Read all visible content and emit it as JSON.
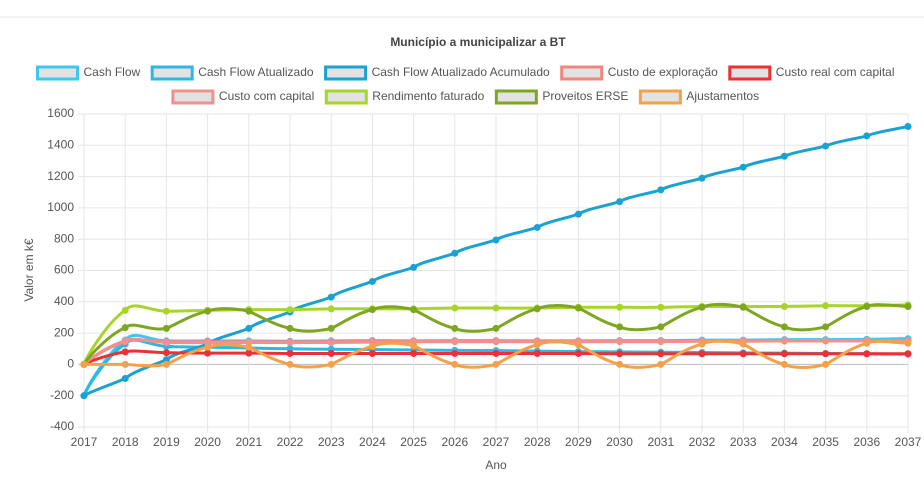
{
  "chart_data": {
    "type": "line",
    "title": "Município a municipalizar a BT",
    "xlabel": "Ano",
    "ylabel": "Valor em k€",
    "x": [
      2017,
      2018,
      2019,
      2020,
      2021,
      2022,
      2023,
      2024,
      2025,
      2026,
      2027,
      2028,
      2029,
      2030,
      2031,
      2032,
      2033,
      2034,
      2035,
      2036,
      2037
    ],
    "xlim": [
      2017,
      2037
    ],
    "xticks": [
      2017,
      2018,
      2019,
      2020,
      2021,
      2022,
      2023,
      2024,
      2025,
      2026,
      2027,
      2028,
      2029,
      2030,
      2031,
      2032,
      2033,
      2034,
      2035,
      2036,
      2037
    ],
    "ylim": [
      -400,
      1600
    ],
    "yticks": [
      -400,
      -200,
      0,
      200,
      400,
      600,
      800,
      1000,
      1200,
      1400,
      1600
    ],
    "grid": true,
    "legend": "top",
    "series": [
      {
        "name": "Cash Flow",
        "color": "#3ec8ee",
        "values": [
          -200,
          155,
          150,
          150,
          150,
          148,
          150,
          152,
          150,
          152,
          152,
          150,
          150,
          152,
          152,
          155,
          155,
          158,
          158,
          160,
          165
        ]
      },
      {
        "name": "Cash Flow Atualizado",
        "color": "#2bb8e6",
        "values": [
          -200,
          130,
          115,
          110,
          105,
          100,
          97,
          95,
          92,
          90,
          88,
          85,
          82,
          80,
          78,
          76,
          74,
          72,
          70,
          68,
          66
        ]
      },
      {
        "name": "Cash Flow Atualizado Acumulado",
        "color": "#1aa2d2",
        "values": [
          -200,
          -90,
          30,
          130,
          230,
          335,
          430,
          530,
          620,
          710,
          795,
          875,
          960,
          1040,
          1115,
          1190,
          1260,
          1330,
          1395,
          1460,
          1520
        ]
      },
      {
        "name": "Custo de exploração",
        "color": "#f0877f",
        "values": [
          0,
          145,
          145,
          145,
          145,
          145,
          145,
          148,
          150,
          150,
          150,
          150,
          150,
          150,
          150,
          150,
          150,
          150,
          150,
          150,
          150
        ]
      },
      {
        "name": "Custo real com capital",
        "color": "#ec3035",
        "values": [
          0,
          80,
          75,
          72,
          72,
          70,
          70,
          70,
          70,
          70,
          70,
          70,
          70,
          68,
          68,
          68,
          68,
          68,
          68,
          68,
          68
        ]
      },
      {
        "name": "Custo com capital",
        "color": "#f29090",
        "values": [
          0,
          150,
          140,
          140,
          140,
          140,
          140,
          142,
          145,
          145,
          145,
          145,
          145,
          145,
          145,
          148,
          148,
          150,
          150,
          150,
          150
        ]
      },
      {
        "name": "Rendimento faturado",
        "color": "#a7d52a",
        "values": [
          0,
          345,
          340,
          345,
          350,
          350,
          355,
          355,
          355,
          360,
          360,
          360,
          365,
          365,
          365,
          370,
          370,
          370,
          375,
          375,
          380
        ]
      },
      {
        "name": "Proveitos ERSE",
        "color": "#7ea621",
        "values": [
          0,
          235,
          230,
          340,
          340,
          230,
          230,
          350,
          350,
          230,
          230,
          355,
          360,
          240,
          240,
          365,
          365,
          240,
          240,
          370,
          370
        ]
      },
      {
        "name": "Ajustamentos",
        "color": "#f4a24a",
        "values": [
          0,
          0,
          0,
          110,
          110,
          0,
          0,
          115,
          120,
          0,
          0,
          125,
          125,
          0,
          0,
          130,
          130,
          0,
          0,
          135,
          135
        ]
      }
    ]
  }
}
